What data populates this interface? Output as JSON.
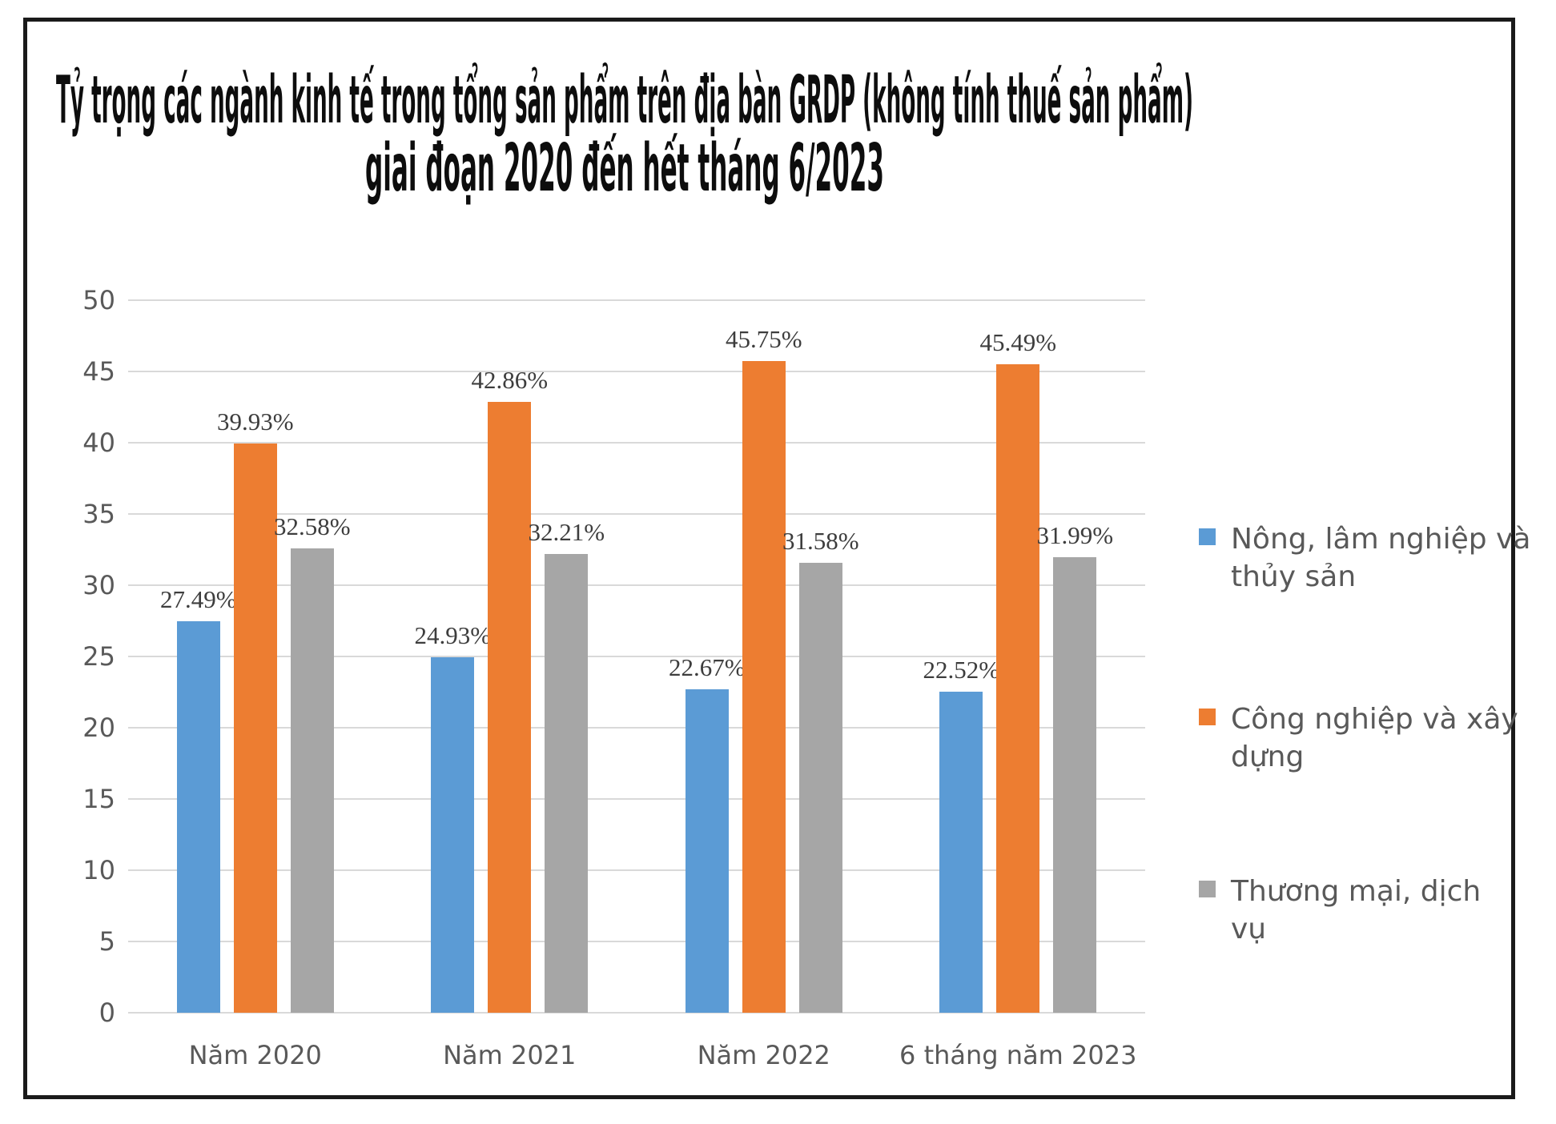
{
  "title": {
    "line1": "Tỷ trọng các ngành kinh tế trong tổng sản phẩm trên địa bàn GRDP (không tính thuế sản phẩm)",
    "line2": "giai đoạn 2020 đến hết tháng 6/2023",
    "color": "#0d0d0d"
  },
  "chart_data": {
    "type": "bar",
    "title": "Tỷ trọng các ngành kinh tế trong tổng sản phẩm trên địa bàn GRDP (không tính thuế sản phẩm) giai đoạn 2020 đến hết tháng 6/2023",
    "categories": [
      "Năm 2020",
      "Năm 2021",
      "Năm 2022",
      "6 tháng năm 2023"
    ],
    "series": [
      {
        "name": "Nông, lâm nghiệp và thủy sản",
        "name_lines": [
          "Nông, lâm nghiệp và",
          "thủy sản"
        ],
        "color": "#5B9BD5",
        "values": [
          27.49,
          24.93,
          22.67,
          22.52
        ],
        "labels": [
          "27.49%",
          "24.93%",
          "22.67%",
          "22.52%"
        ]
      },
      {
        "name": "Công nghiệp và xây dựng",
        "name_lines": [
          "Công nghiệp và xây",
          "dựng"
        ],
        "color": "#ED7D31",
        "values": [
          39.93,
          42.86,
          45.75,
          45.49
        ],
        "labels": [
          "39.93%",
          "42.86%",
          "45.75%",
          "45.49%"
        ]
      },
      {
        "name": "Thương mại, dịch vụ",
        "name_lines": [
          "Thương mại, dịch",
          "vụ"
        ],
        "color": "#A6A6A6",
        "values": [
          32.58,
          32.21,
          31.58,
          31.99
        ],
        "labels": [
          "32.58%",
          "32.21%",
          "31.58%",
          "31.99%"
        ]
      }
    ],
    "ylim": [
      0,
      50
    ],
    "yticks": [
      50,
      45,
      40,
      35,
      30,
      25,
      20,
      15,
      10,
      5,
      0
    ],
    "grid": true,
    "legend_position": "right",
    "gridline_color": "#D9D9D9",
    "axis_text_color": "#595959",
    "datalabel_color": "#3d3d3d"
  }
}
